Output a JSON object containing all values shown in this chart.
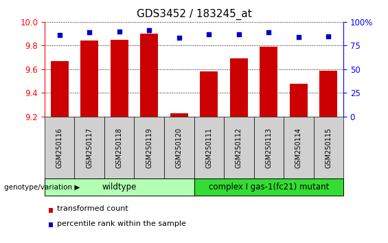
{
  "title": "GDS3452 / 183245_at",
  "samples": [
    "GSM250116",
    "GSM250117",
    "GSM250118",
    "GSM250119",
    "GSM250120",
    "GSM250111",
    "GSM250112",
    "GSM250113",
    "GSM250114",
    "GSM250115"
  ],
  "transformed_count": [
    9.67,
    9.84,
    9.85,
    9.9,
    9.23,
    9.58,
    9.69,
    9.79,
    9.48,
    9.59
  ],
  "percentile_rank": [
    86,
    89,
    90,
    91,
    83,
    87,
    87,
    89,
    84,
    85
  ],
  "ylim_left": [
    9.2,
    10.0
  ],
  "ylim_right": [
    0,
    100
  ],
  "yticks_left": [
    9.2,
    9.4,
    9.6,
    9.8,
    10.0
  ],
  "yticks_right": [
    0,
    25,
    50,
    75,
    100
  ],
  "bar_color": "#cc0000",
  "dot_color": "#0000cc",
  "bar_bottom": 9.2,
  "groups": [
    {
      "label": "wildtype",
      "start": 0,
      "end": 5,
      "color": "#b3ffb3"
    },
    {
      "label": "complex I gas-1(fc21) mutant",
      "start": 5,
      "end": 10,
      "color": "#33dd33"
    }
  ],
  "legend_items": [
    {
      "color": "#cc0000",
      "label": "transformed count"
    },
    {
      "color": "#0000cc",
      "label": "percentile rank within the sample"
    }
  ],
  "background_color": "#ffffff",
  "sample_bg_color": "#d0d0d0",
  "title_fontsize": 11,
  "tick_fontsize": 8.5,
  "sample_fontsize": 7,
  "group_fontsize": 8.5,
  "legend_fontsize": 8
}
